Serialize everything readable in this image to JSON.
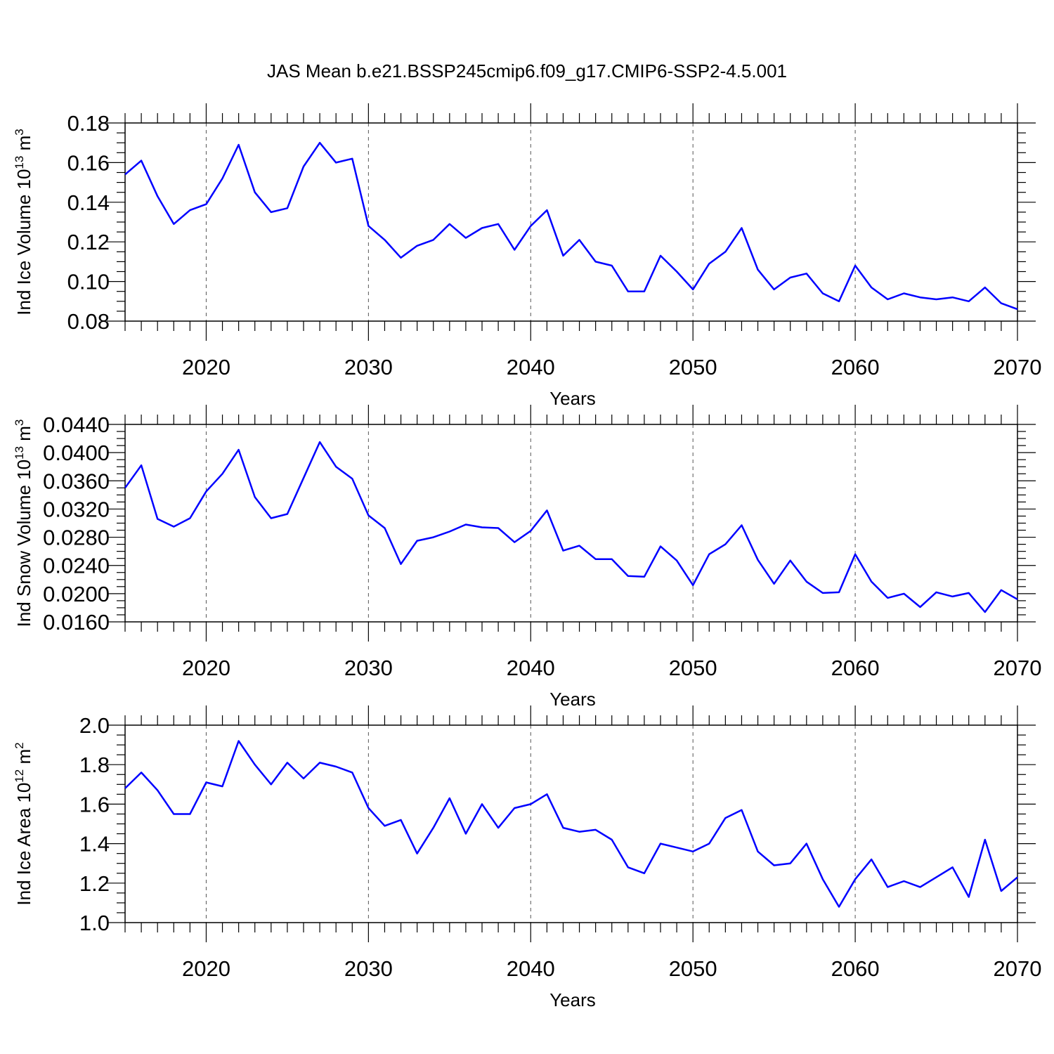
{
  "title": "JAS Mean b.e21.BSSP245cmip6.f09_g17.CMIP6-SSP2-4.5.001",
  "chart_data": [
    {
      "type": "line",
      "xlabel": "Years",
      "ylabel": "Ind Ice Volume 10",
      "ylabel_sup": "13",
      "ylabel_unit": " m",
      "ylabel_unit_sup": "3",
      "xlim": [
        2015,
        2070
      ],
      "ylim": [
        0.08,
        0.18
      ],
      "xticks": [
        2020,
        2030,
        2040,
        2050,
        2060,
        2070
      ],
      "yticks": [
        "0.08",
        "0.10",
        "0.12",
        "0.14",
        "0.16",
        "0.18"
      ],
      "grid": "vertical dashed at major x ticks",
      "line_color": "#0000ff",
      "series": [
        {
          "x": [
            2015,
            2016,
            2017,
            2018,
            2019,
            2020,
            2021,
            2022,
            2023,
            2024,
            2025,
            2026,
            2027,
            2028,
            2029,
            2030,
            2031,
            2032,
            2033,
            2034,
            2035,
            2036,
            2037,
            2038,
            2039,
            2040,
            2041,
            2042,
            2043,
            2044,
            2045,
            2046,
            2047,
            2048,
            2049,
            2050,
            2051,
            2052,
            2053,
            2054,
            2055,
            2056,
            2057,
            2058,
            2059,
            2060,
            2061,
            2062,
            2063,
            2064,
            2065,
            2066,
            2067,
            2068,
            2069,
            2070
          ],
          "values": [
            0.154,
            0.161,
            0.143,
            0.129,
            0.136,
            0.139,
            0.152,
            0.169,
            0.145,
            0.135,
            0.137,
            0.158,
            0.17,
            0.16,
            0.162,
            0.128,
            0.121,
            0.112,
            0.118,
            0.121,
            0.129,
            0.122,
            0.127,
            0.129,
            0.116,
            0.128,
            0.136,
            0.113,
            0.121,
            0.11,
            0.108,
            0.095,
            0.095,
            0.113,
            0.105,
            0.096,
            0.109,
            0.115,
            0.127,
            0.106,
            0.096,
            0.102,
            0.104,
            0.094,
            0.09,
            0.108,
            0.097,
            0.091,
            0.094,
            0.092,
            0.091,
            0.092,
            0.09,
            0.097,
            0.089,
            0.086
          ]
        }
      ]
    },
    {
      "type": "line",
      "xlabel": "Years",
      "ylabel": "Ind Snow Volume 10",
      "ylabel_sup": "13",
      "ylabel_unit": " m",
      "ylabel_unit_sup": "3",
      "xlim": [
        2015,
        2070
      ],
      "ylim": [
        0.016,
        0.044
      ],
      "xticks": [
        2020,
        2030,
        2040,
        2050,
        2060,
        2070
      ],
      "yticks": [
        "0.0160",
        "0.0200",
        "0.0240",
        "0.0280",
        "0.0320",
        "0.0360",
        "0.0400",
        "0.0440"
      ],
      "grid": "vertical dashed at major x ticks",
      "line_color": "#0000ff",
      "series": [
        {
          "x": [
            2015,
            2016,
            2017,
            2018,
            2019,
            2020,
            2021,
            2022,
            2023,
            2024,
            2025,
            2026,
            2027,
            2028,
            2029,
            2030,
            2031,
            2032,
            2033,
            2034,
            2035,
            2036,
            2037,
            2038,
            2039,
            2040,
            2041,
            2042,
            2043,
            2044,
            2045,
            2046,
            2047,
            2048,
            2049,
            2050,
            2051,
            2052,
            2053,
            2054,
            2055,
            2056,
            2057,
            2058,
            2059,
            2060,
            2061,
            2062,
            2063,
            2064,
            2065,
            2066,
            2067,
            2068,
            2069,
            2070
          ],
          "values": [
            0.035,
            0.0382,
            0.0306,
            0.0295,
            0.0307,
            0.0345,
            0.037,
            0.0404,
            0.0337,
            0.0307,
            0.0313,
            0.0364,
            0.0415,
            0.038,
            0.0363,
            0.0311,
            0.0293,
            0.0242,
            0.0275,
            0.028,
            0.0288,
            0.0298,
            0.0294,
            0.0293,
            0.0273,
            0.0289,
            0.0318,
            0.0261,
            0.0268,
            0.0249,
            0.0249,
            0.0225,
            0.0224,
            0.0267,
            0.0247,
            0.0212,
            0.0256,
            0.027,
            0.0297,
            0.0248,
            0.0214,
            0.0247,
            0.0217,
            0.0201,
            0.0202,
            0.0256,
            0.0217,
            0.0194,
            0.02,
            0.0181,
            0.0202,
            0.0196,
            0.0201,
            0.0174,
            0.0205,
            0.0192
          ]
        }
      ]
    },
    {
      "type": "line",
      "xlabel": "Years",
      "ylabel": "Ind Ice Area 10",
      "ylabel_sup": "12",
      "ylabel_unit": " m",
      "ylabel_unit_sup": "2",
      "xlim": [
        2015,
        2070
      ],
      "ylim": [
        1.0,
        2.0
      ],
      "xticks": [
        2020,
        2030,
        2040,
        2050,
        2060,
        2070
      ],
      "yticks": [
        "1.0",
        "1.2",
        "1.4",
        "1.6",
        "1.8",
        "2.0"
      ],
      "grid": "vertical dashed at major x ticks",
      "line_color": "#0000ff",
      "series": [
        {
          "x": [
            2015,
            2016,
            2017,
            2018,
            2019,
            2020,
            2021,
            2022,
            2023,
            2024,
            2025,
            2026,
            2027,
            2028,
            2029,
            2030,
            2031,
            2032,
            2033,
            2034,
            2035,
            2036,
            2037,
            2038,
            2039,
            2040,
            2041,
            2042,
            2043,
            2044,
            2045,
            2046,
            2047,
            2048,
            2049,
            2050,
            2051,
            2052,
            2053,
            2054,
            2055,
            2056,
            2057,
            2058,
            2059,
            2060,
            2061,
            2062,
            2063,
            2064,
            2065,
            2066,
            2067,
            2068,
            2069,
            2070
          ],
          "values": [
            1.68,
            1.76,
            1.67,
            1.55,
            1.55,
            1.71,
            1.69,
            1.92,
            1.8,
            1.7,
            1.81,
            1.73,
            1.81,
            1.79,
            1.76,
            1.58,
            1.49,
            1.52,
            1.35,
            1.48,
            1.63,
            1.45,
            1.6,
            1.48,
            1.58,
            1.6,
            1.65,
            1.48,
            1.46,
            1.47,
            1.42,
            1.28,
            1.25,
            1.4,
            1.38,
            1.36,
            1.4,
            1.53,
            1.57,
            1.36,
            1.29,
            1.3,
            1.4,
            1.22,
            1.08,
            1.22,
            1.32,
            1.18,
            1.21,
            1.18,
            1.23,
            1.28,
            1.13,
            1.42,
            1.16,
            1.23
          ]
        }
      ]
    }
  ]
}
